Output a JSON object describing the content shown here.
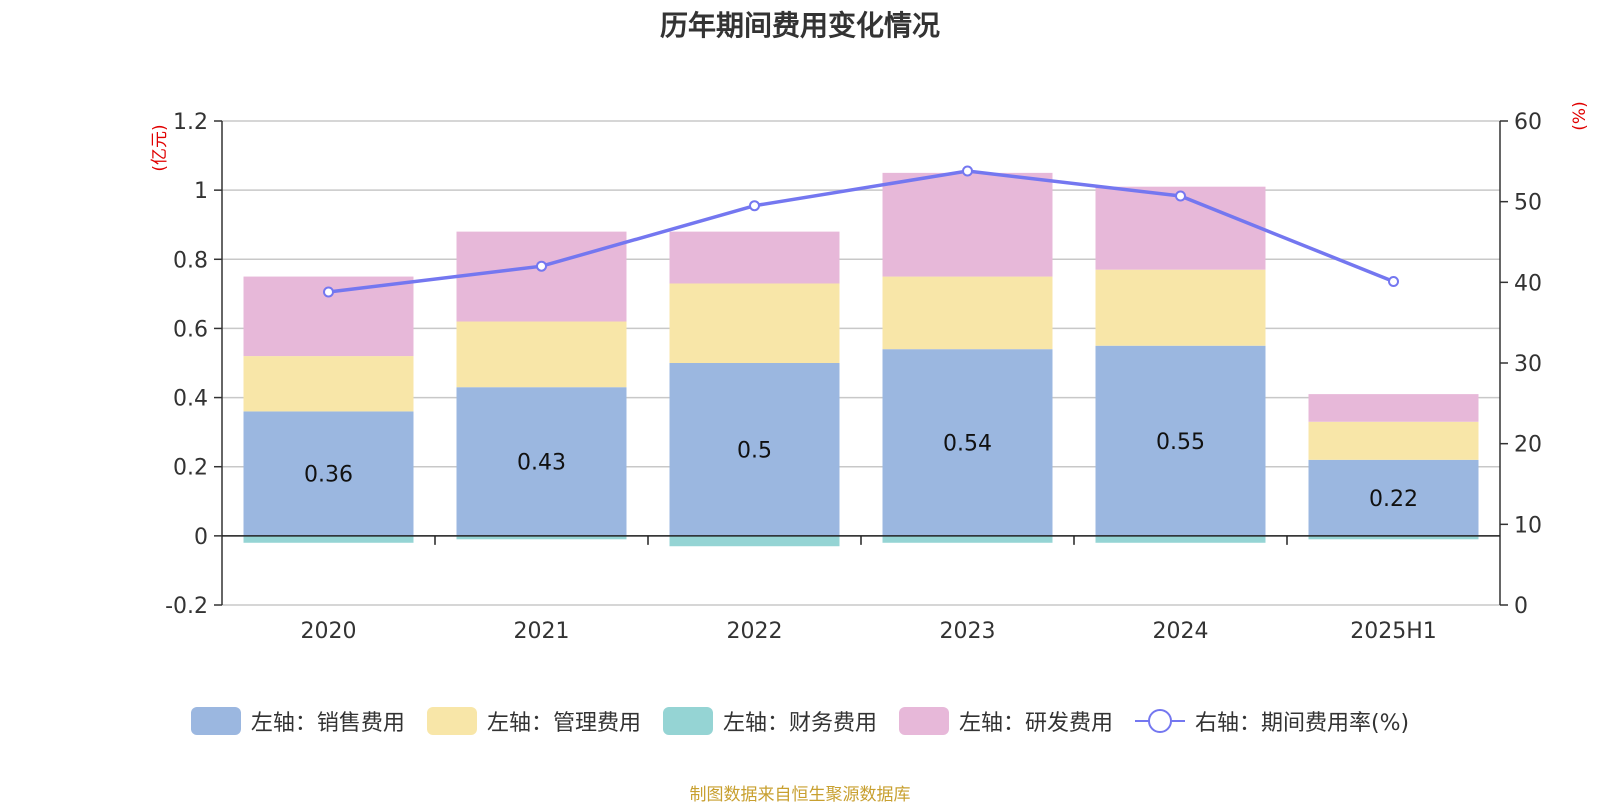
{
  "colors": {
    "sales": "#9bb7e0",
    "admin": "#f8e6a8",
    "finance": "#95d4d4",
    "rnd": "#e7b8d9",
    "rate": "#7477f0",
    "unit": "#e00000",
    "source": "#c8a030"
  },
  "chart_data": {
    "type": "bar",
    "title": "历年期间费用变化情况",
    "stacked": true,
    "categories": [
      "2020",
      "2021",
      "2022",
      "2023",
      "2024",
      "2025H1"
    ],
    "y_left": {
      "unit": "(亿元)",
      "ticks": [
        "-0.2",
        "0",
        "0.2",
        "0.4",
        "0.6",
        "0.8",
        "1",
        "1.2"
      ],
      "range": [
        -0.2,
        1.2
      ]
    },
    "y_right": {
      "unit": "(%)",
      "ticks": [
        "0",
        "10",
        "20",
        "30",
        "40",
        "50",
        "60"
      ],
      "range": [
        0,
        60
      ]
    },
    "series": [
      {
        "name": "左轴：销售费用",
        "key": "sales",
        "values": [
          0.36,
          0.43,
          0.5,
          0.54,
          0.55,
          0.22
        ],
        "labels": [
          "0.36",
          "0.43",
          "0.5",
          "0.54",
          "0.55",
          "0.22"
        ]
      },
      {
        "name": "左轴：管理费用",
        "key": "admin",
        "values": [
          0.16,
          0.19,
          0.23,
          0.21,
          0.22,
          0.11
        ]
      },
      {
        "name": "左轴：财务费用",
        "key": "finance",
        "values": [
          -0.02,
          -0.01,
          -0.03,
          -0.02,
          -0.02,
          -0.01
        ]
      },
      {
        "name": "左轴：研发费用",
        "key": "rnd",
        "values": [
          0.23,
          0.26,
          0.15,
          0.3,
          0.24,
          0.08
        ]
      }
    ],
    "line_series": {
      "name": "右轴：期间费用率(%)",
      "axis": "right",
      "values": [
        38.8,
        42.0,
        49.5,
        53.8,
        50.7,
        40.1
      ]
    },
    "grid": true,
    "legend_position": "bottom"
  },
  "legend": [
    {
      "label": "左轴：销售费用",
      "key": "sales"
    },
    {
      "label": "左轴：管理费用",
      "key": "admin"
    },
    {
      "label": "左轴：财务费用",
      "key": "finance"
    },
    {
      "label": "左轴：研发费用",
      "key": "rnd"
    },
    {
      "label": "右轴：期间费用率(%)",
      "key": "rate"
    }
  ],
  "source_note": "制图数据来自恒生聚源数据库"
}
